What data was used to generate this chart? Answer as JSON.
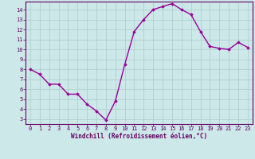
{
  "x": [
    0,
    1,
    2,
    3,
    4,
    5,
    6,
    7,
    8,
    9,
    10,
    11,
    12,
    13,
    14,
    15,
    16,
    17,
    18,
    19,
    20,
    21,
    22,
    23
  ],
  "y": [
    8.0,
    7.5,
    6.5,
    6.5,
    5.5,
    5.5,
    4.5,
    3.8,
    2.9,
    4.8,
    8.5,
    11.8,
    13.0,
    14.0,
    14.3,
    14.6,
    14.0,
    13.5,
    11.8,
    10.3,
    10.1,
    10.0,
    10.7,
    10.2
  ],
  "line_color": "#990099",
  "marker": "D",
  "marker_size": 1.8,
  "bg_color": "#cce8e8",
  "grid_color": "#aacccc",
  "xlabel": "Windchill (Refroidissement éolien,°C)",
  "xlim": [
    -0.5,
    23.5
  ],
  "ylim": [
    2.5,
    14.8
  ],
  "yticks": [
    3,
    4,
    5,
    6,
    7,
    8,
    9,
    10,
    11,
    12,
    13,
    14
  ],
  "xticks": [
    0,
    1,
    2,
    3,
    4,
    5,
    6,
    7,
    8,
    9,
    10,
    11,
    12,
    13,
    14,
    15,
    16,
    17,
    18,
    19,
    20,
    21,
    22,
    23
  ],
  "axis_color": "#660066",
  "tick_color": "#660066",
  "label_color": "#660066",
  "linewidth": 1.0,
  "tick_labelsize": 5,
  "xlabel_fontsize": 5.5
}
